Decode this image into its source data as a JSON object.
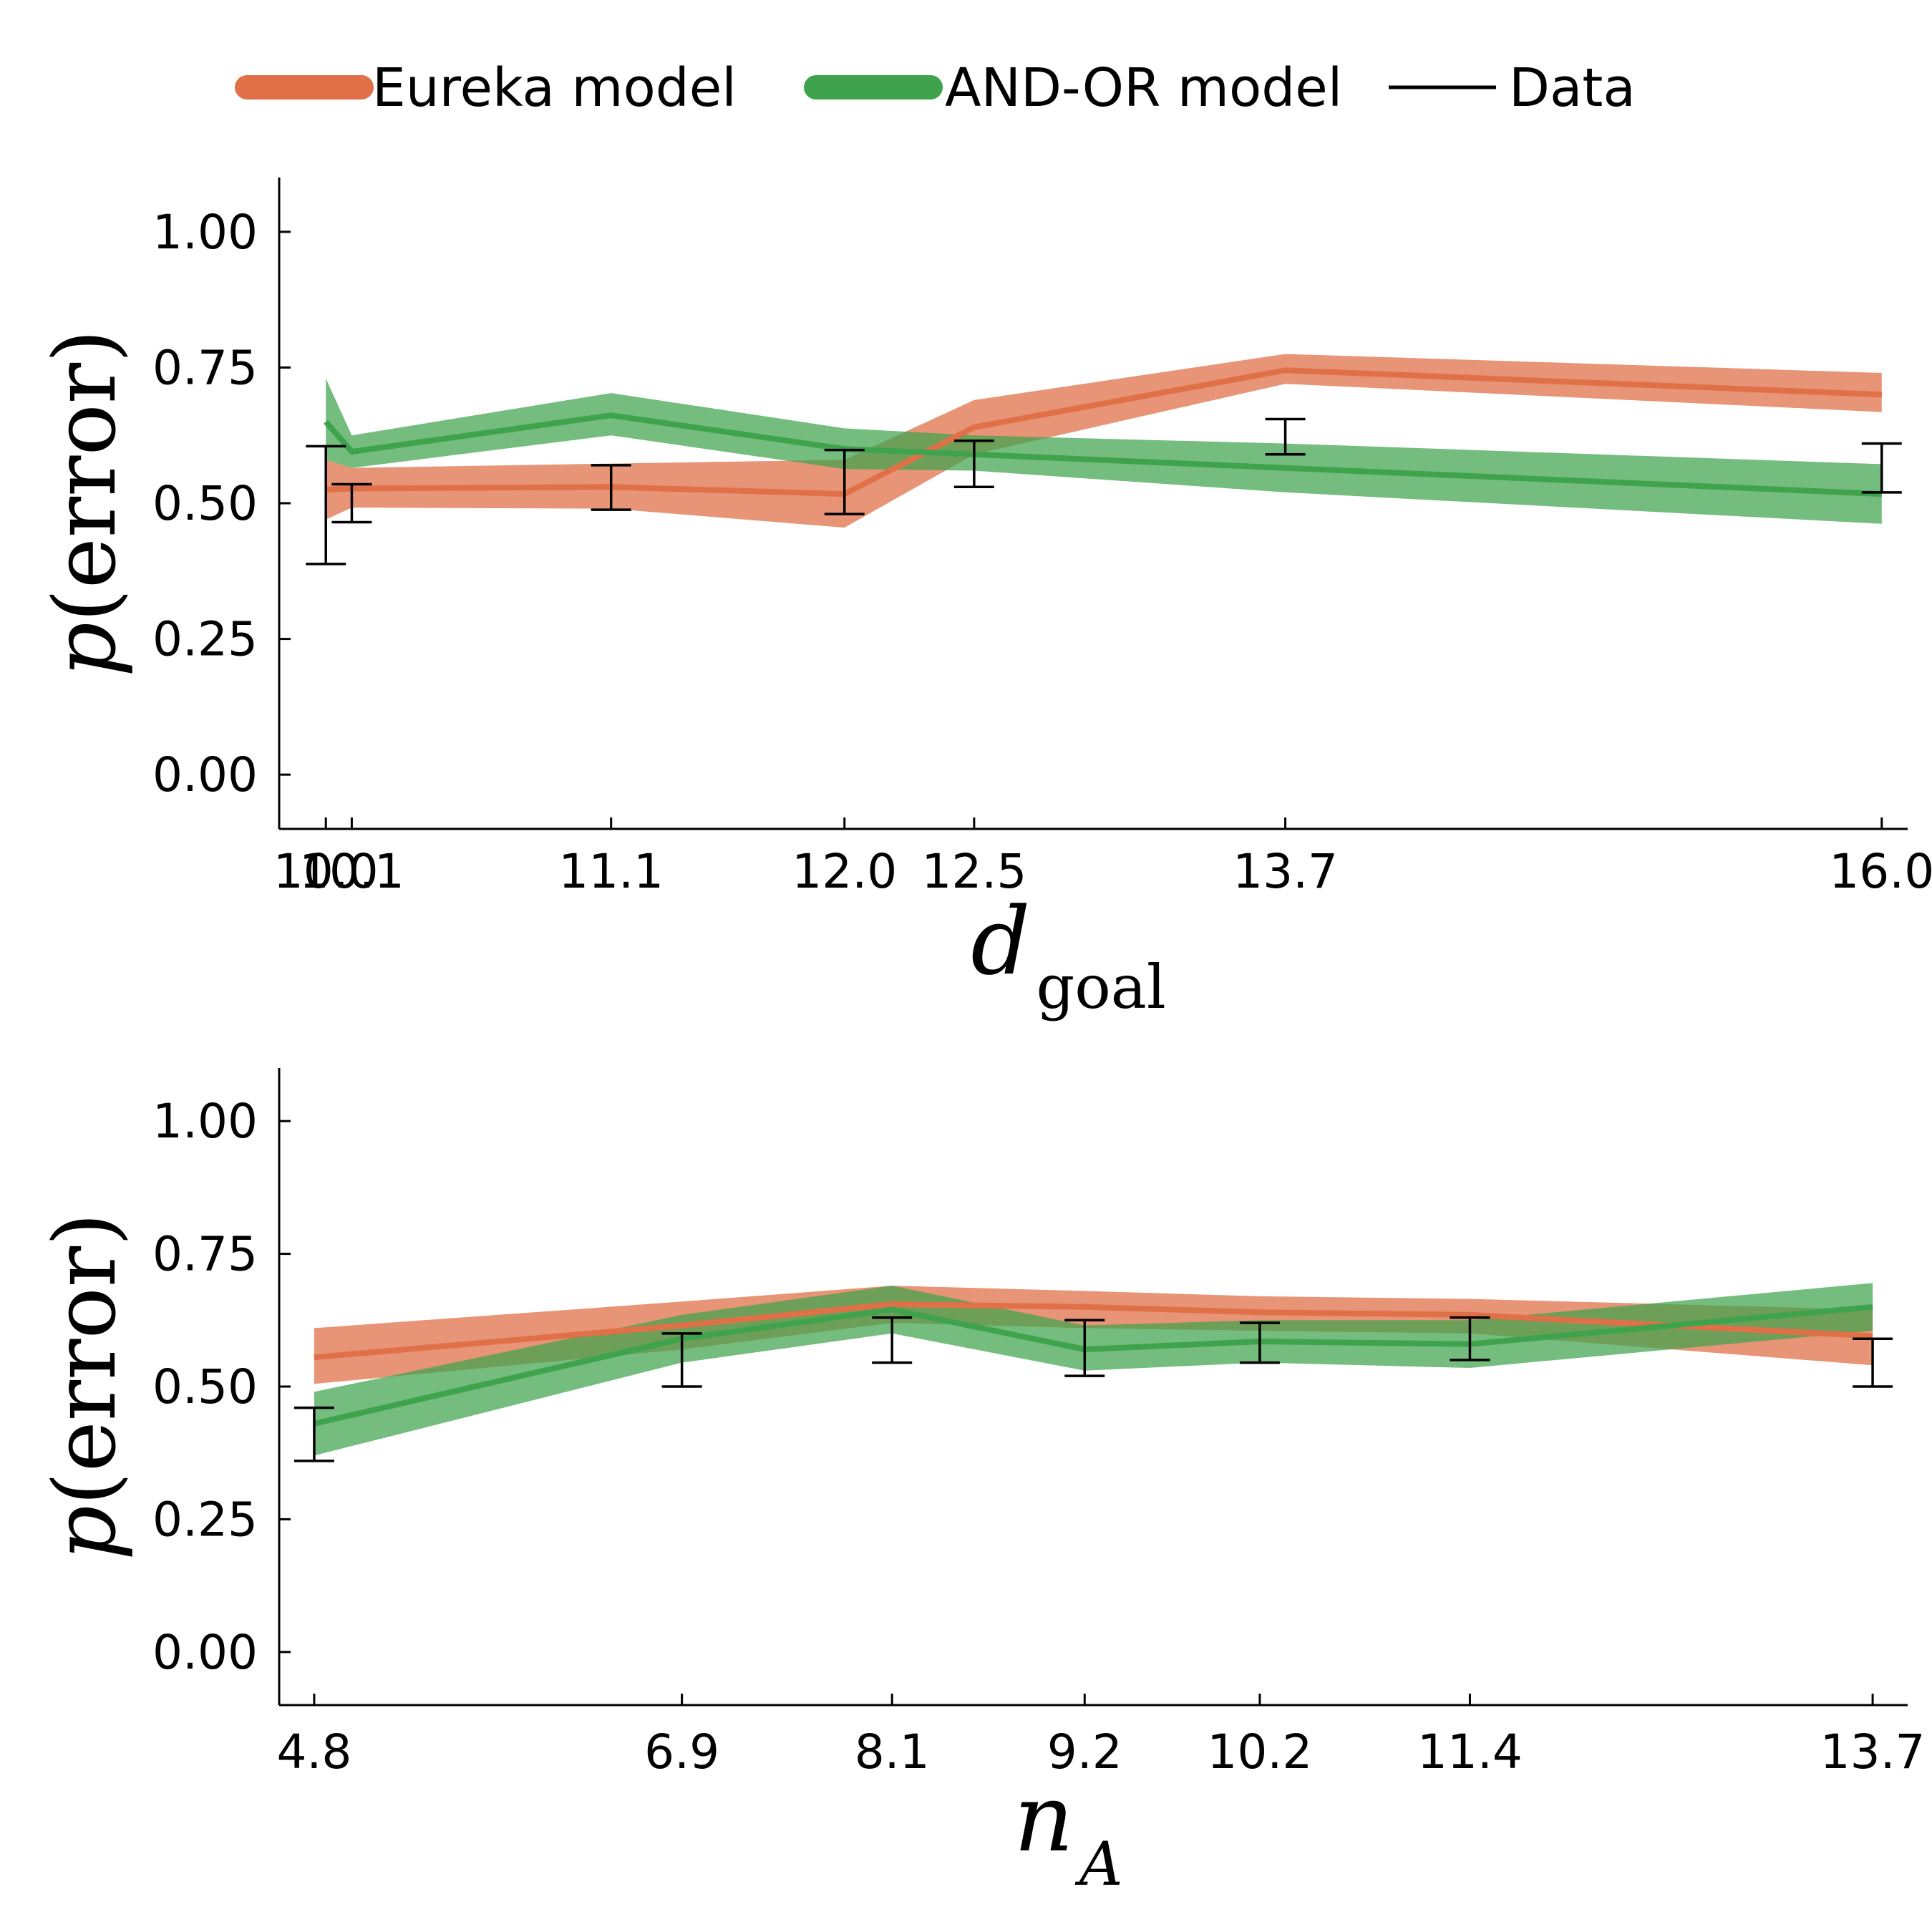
{
  "legend": {
    "items": [
      {
        "label": "Eureka model",
        "color": "#e07048",
        "kind": "thick"
      },
      {
        "label": "AND-OR model",
        "color": "#3fa34d",
        "kind": "thick"
      },
      {
        "label": "Data",
        "color": "#000000",
        "kind": "thin"
      }
    ]
  },
  "chart_data": [
    {
      "type": "line",
      "xlabel": "d",
      "xlabel_subscript": "goal",
      "ylabel_func": "p",
      "ylabel_arg": "error",
      "ylim": [
        -0.1,
        1.1
      ],
      "yticks": [
        0.0,
        0.25,
        0.5,
        0.75,
        1.0
      ],
      "ytick_labels": [
        "0.00",
        "0.25",
        "0.50",
        "0.75",
        "1.00"
      ],
      "xlim": [
        9.82,
        16.1
      ],
      "xticks": [
        10.0,
        10.1,
        11.1,
        12.0,
        12.5,
        13.7,
        16.0
      ],
      "xtick_labels": [
        "10.0",
        "10.1",
        "11.1",
        "12.0",
        "12.5",
        "13.7",
        "16.0"
      ],
      "grid": false,
      "series": [
        {
          "name": "Eureka model",
          "color": "#e07048",
          "x": [
            10.0,
            10.1,
            11.1,
            12.0,
            12.5,
            13.7,
            16.0
          ],
          "y": [
            0.525,
            0.527,
            0.53,
            0.517,
            0.64,
            0.745,
            0.7
          ],
          "lower": [
            0.47,
            0.492,
            0.49,
            0.455,
            0.59,
            0.72,
            0.668
          ],
          "upper": [
            0.58,
            0.565,
            0.573,
            0.58,
            0.69,
            0.775,
            0.74
          ]
        },
        {
          "name": "AND-OR model",
          "color": "#3fa34d",
          "x": [
            10.0,
            10.1,
            11.1,
            12.0,
            12.5,
            13.7,
            16.0
          ],
          "y": [
            0.65,
            0.595,
            0.662,
            0.6,
            0.59,
            0.565,
            0.517
          ],
          "lower": [
            0.58,
            0.565,
            0.625,
            0.563,
            0.56,
            0.52,
            0.462
          ],
          "upper": [
            0.73,
            0.625,
            0.703,
            0.638,
            0.625,
            0.61,
            0.572
          ]
        }
      ],
      "data_points": {
        "name": "Data",
        "x": [
          10.0,
          10.1,
          11.1,
          12.0,
          12.5,
          13.7,
          16.0
        ],
        "lower": [
          0.388,
          0.465,
          0.488,
          0.48,
          0.53,
          0.59,
          0.52
        ],
        "upper": [
          0.605,
          0.535,
          0.57,
          0.598,
          0.615,
          0.655,
          0.61
        ]
      }
    },
    {
      "type": "line",
      "xlabel": "n",
      "xlabel_subscript": "A",
      "ylabel_func": "p",
      "ylabel_arg": "error",
      "ylim": [
        -0.1,
        1.1
      ],
      "yticks": [
        0.0,
        0.25,
        0.5,
        0.75,
        1.0
      ],
      "ytick_labels": [
        "0.00",
        "0.25",
        "0.50",
        "0.75",
        "1.00"
      ],
      "xlim": [
        4.6,
        13.9
      ],
      "xticks": [
        4.8,
        6.9,
        8.1,
        9.2,
        10.2,
        11.4,
        13.7
      ],
      "xtick_labels": [
        "4.8",
        "6.9",
        "8.1",
        "9.2",
        "10.2",
        "11.4",
        "13.7"
      ],
      "grid": false,
      "series": [
        {
          "name": "Eureka model",
          "color": "#e07048",
          "x": [
            4.8,
            6.9,
            8.1,
            9.2,
            10.2,
            11.4,
            13.7
          ],
          "y": [
            0.555,
            0.615,
            0.655,
            0.65,
            0.64,
            0.635,
            0.595
          ],
          "lower": [
            0.505,
            0.57,
            0.62,
            0.61,
            0.605,
            0.6,
            0.54
          ],
          "upper": [
            0.61,
            0.66,
            0.69,
            0.68,
            0.67,
            0.665,
            0.645
          ]
        },
        {
          "name": "AND-OR model",
          "color": "#3fa34d",
          "x": [
            4.8,
            6.9,
            8.1,
            9.2,
            10.2,
            11.4,
            13.7
          ],
          "y": [
            0.43,
            0.59,
            0.645,
            0.57,
            0.585,
            0.58,
            0.65
          ],
          "lower": [
            0.37,
            0.545,
            0.6,
            0.53,
            0.545,
            0.535,
            0.605
          ],
          "upper": [
            0.49,
            0.635,
            0.69,
            0.615,
            0.625,
            0.625,
            0.695
          ]
        }
      ],
      "data_points": {
        "name": "Data",
        "x": [
          4.8,
          6.9,
          8.1,
          9.2,
          10.2,
          11.4,
          13.7
        ],
        "lower": [
          0.36,
          0.5,
          0.545,
          0.52,
          0.545,
          0.55,
          0.5
        ],
        "upper": [
          0.46,
          0.6,
          0.63,
          0.625,
          0.62,
          0.63,
          0.59
        ]
      }
    }
  ]
}
